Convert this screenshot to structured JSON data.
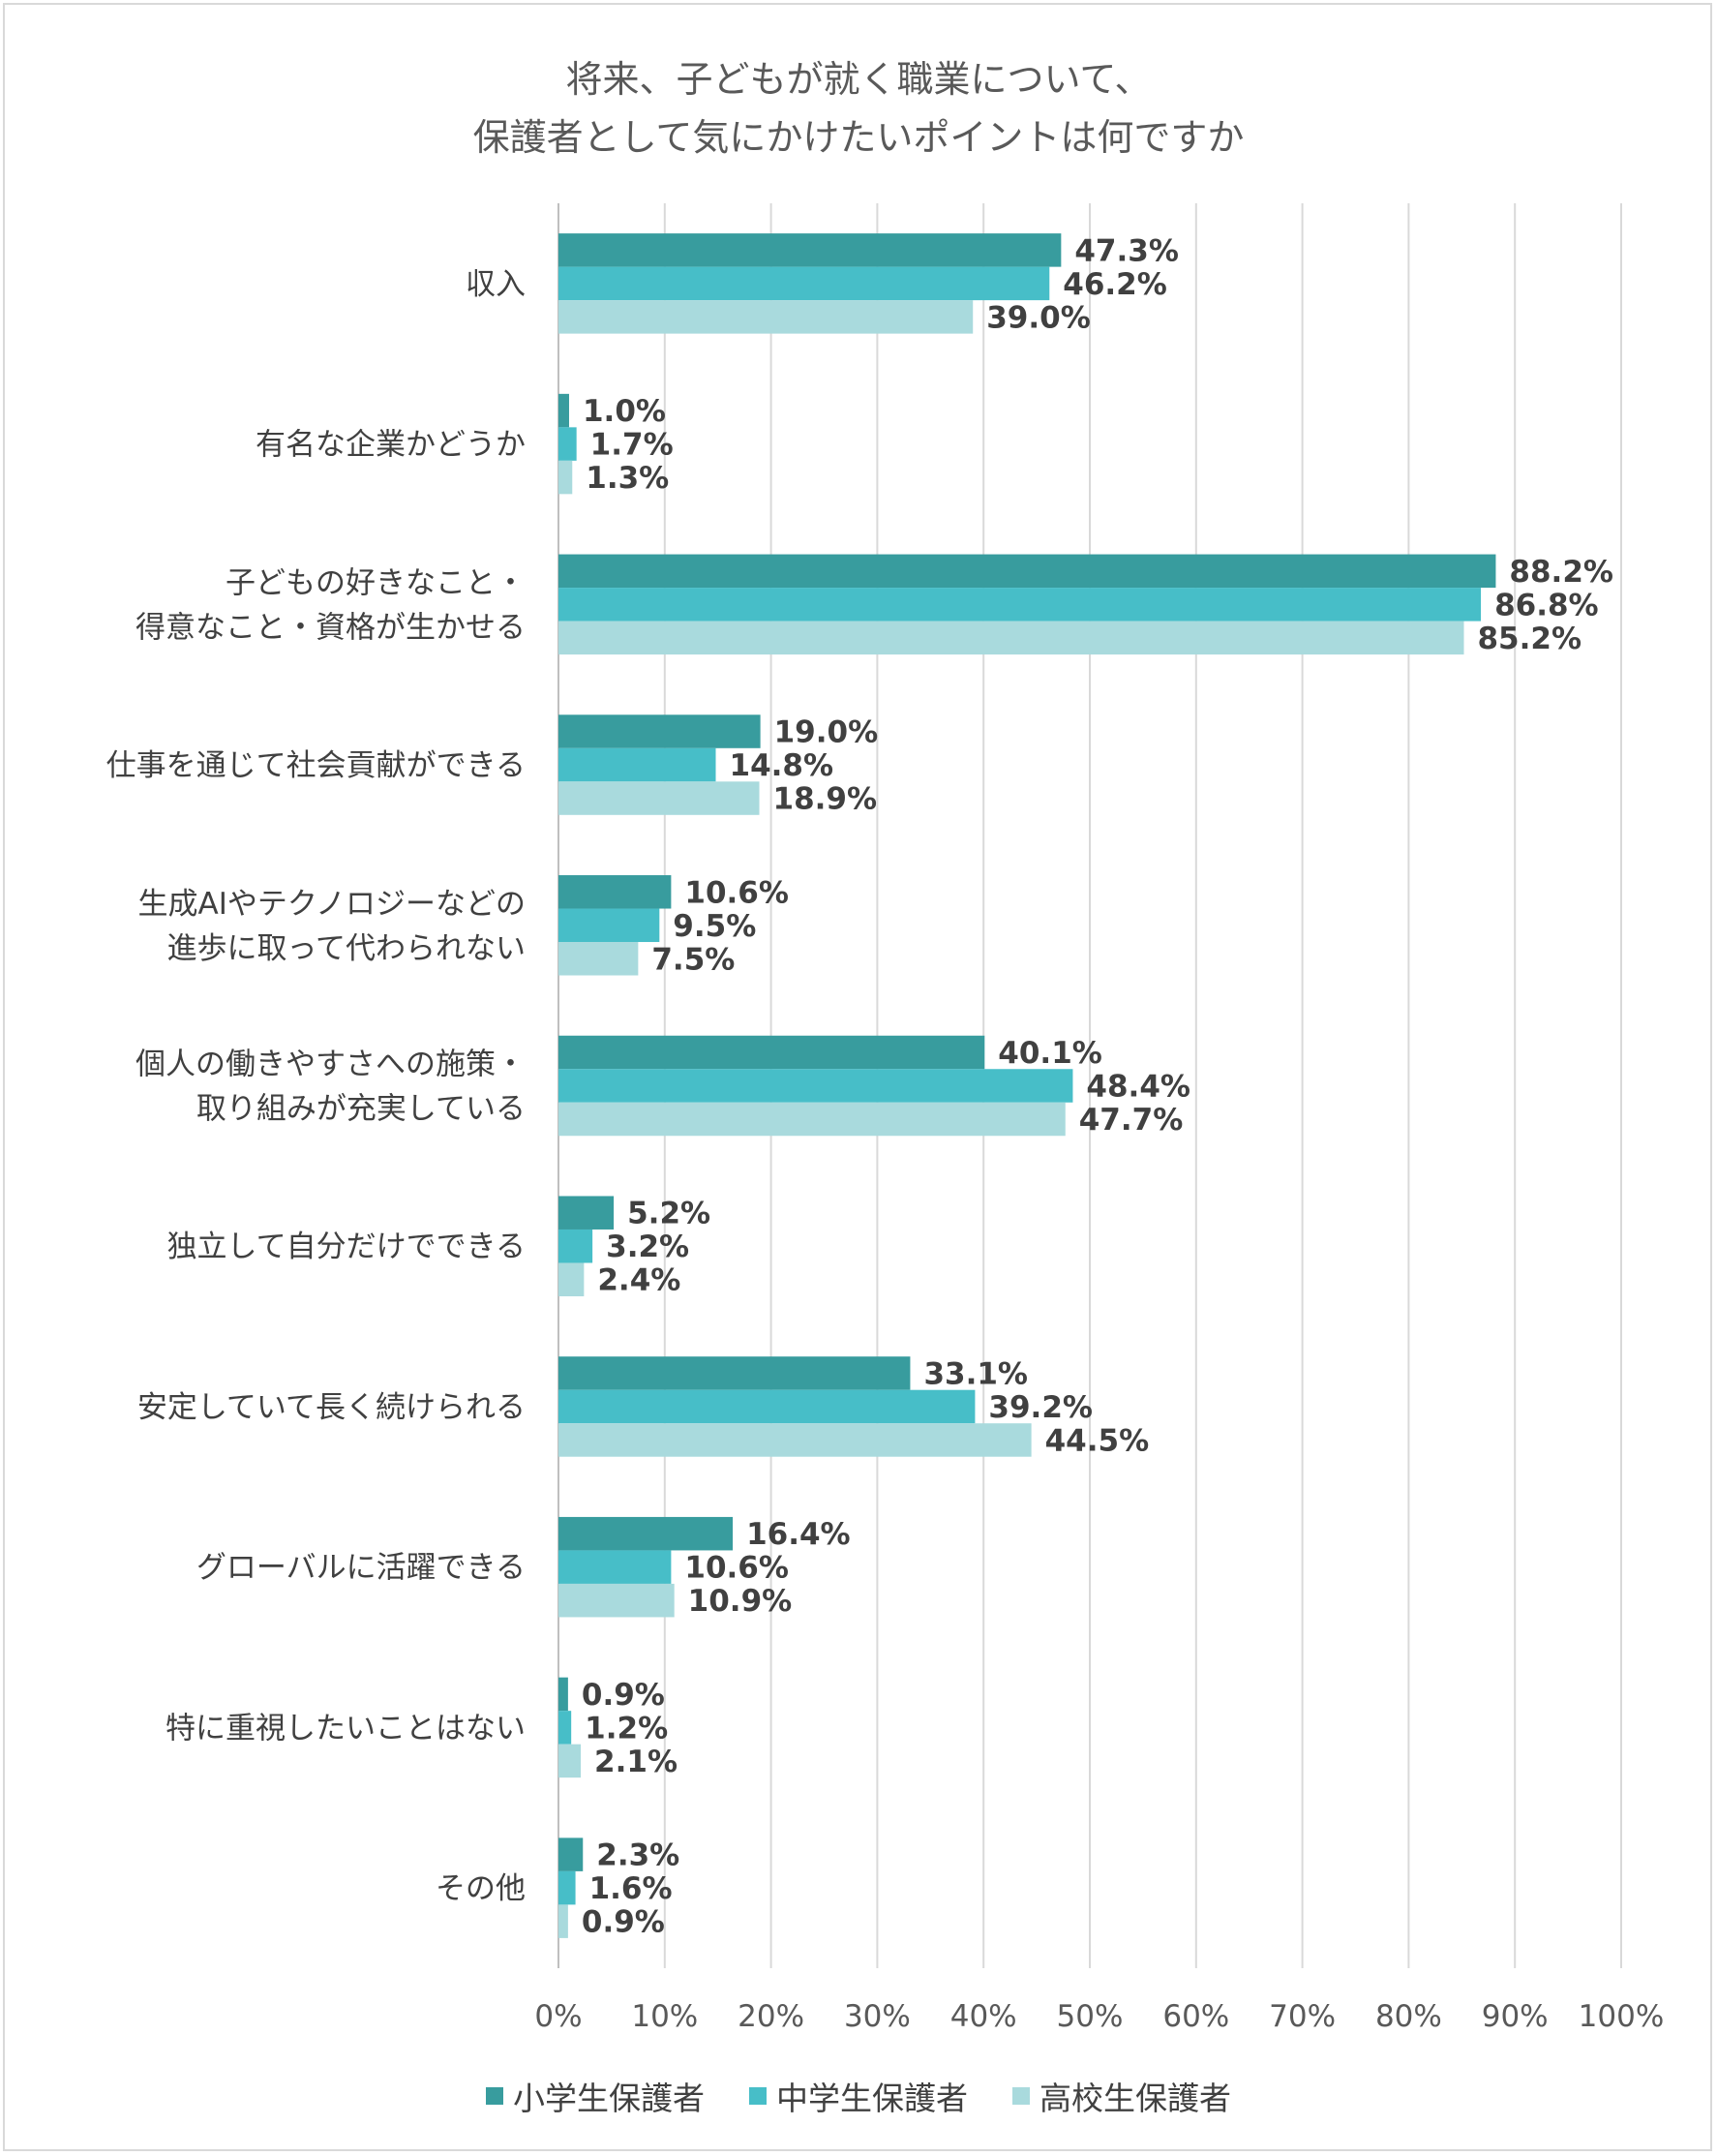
{
  "title_lines": [
    "将来、子どもが就く職業について、",
    "保護者として気にかけたいポイントは何ですか"
  ],
  "colors": {
    "elementary": "#389c9e",
    "junior_high": "#47bec8",
    "high_school": "#a9dadd",
    "gridline": "#d9d9d9"
  },
  "chart_data": {
    "type": "bar",
    "orientation": "horizontal",
    "title": "将来、子どもが就く職業について、保護者として気にかけたいポイントは何ですか",
    "categories": [
      [
        "収入"
      ],
      [
        "有名な企業かどうか"
      ],
      [
        "子どもの好きなこと・",
        "得意なこと・資格が生かせる"
      ],
      [
        "仕事を通じて社会貢献ができる"
      ],
      [
        "生成AIやテクノロジーなどの",
        "進歩に取って代わられない"
      ],
      [
        "個人の働きやすさへの施策・",
        "取り組みが充実している"
      ],
      [
        "独立して自分だけでできる"
      ],
      [
        "安定していて長く続けられる"
      ],
      [
        "グローバルに活躍できる"
      ],
      [
        "特に重視したいことはない"
      ],
      [
        "その他"
      ]
    ],
    "series": [
      {
        "name": "小学生保護者",
        "color": "#389c9e",
        "values": [
          47.3,
          1.0,
          88.2,
          19.0,
          10.6,
          40.1,
          5.2,
          33.1,
          16.4,
          0.9,
          2.3
        ]
      },
      {
        "name": "中学生保護者",
        "color": "#47bec8",
        "values": [
          46.2,
          1.7,
          86.8,
          14.8,
          9.5,
          48.4,
          3.2,
          39.2,
          10.6,
          1.2,
          1.6
        ]
      },
      {
        "name": "高校生保護者",
        "color": "#a9dadd",
        "values": [
          39.0,
          1.3,
          85.2,
          18.9,
          7.5,
          47.7,
          2.4,
          44.5,
          10.9,
          2.1,
          0.9
        ]
      }
    ],
    "x_ticks": [
      "0%",
      "10%",
      "20%",
      "30%",
      "40%",
      "50%",
      "60%",
      "70%",
      "80%",
      "90%",
      "100%"
    ],
    "xlim": [
      0,
      100
    ],
    "value_suffix": "%",
    "legend_position": "bottom"
  }
}
